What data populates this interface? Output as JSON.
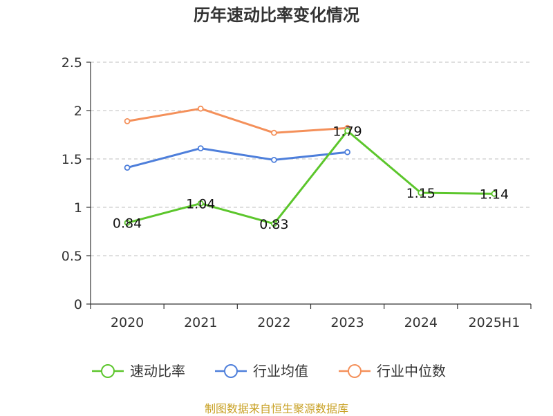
{
  "chart_data": {
    "type": "line",
    "title": "历年速动比率变化情况",
    "categories": [
      "2020",
      "2021",
      "2022",
      "2023",
      "2024",
      "2025H1"
    ],
    "ylim": [
      0,
      2.5
    ],
    "yticks": [
      "0",
      "0.5",
      "1",
      "1.5",
      "2",
      "2.5"
    ],
    "grid": true,
    "legend_position": "bottom",
    "series": [
      {
        "name": "速动比率",
        "color": "#5cc62c",
        "values": [
          0.84,
          1.04,
          0.83,
          1.79,
          1.15,
          1.14
        ],
        "labels": [
          "0.84",
          "1.04",
          "0.83",
          "1.79",
          "1.15",
          "1.14"
        ]
      },
      {
        "name": "行业均值",
        "color": "#4e7fdb",
        "values": [
          1.41,
          1.61,
          1.49,
          1.57,
          null,
          null
        ]
      },
      {
        "name": "行业中位数",
        "color": "#f4905a",
        "values": [
          1.89,
          2.02,
          1.77,
          1.82,
          null,
          null
        ]
      }
    ]
  },
  "source_note": "制图数据来自恒生聚源数据库"
}
